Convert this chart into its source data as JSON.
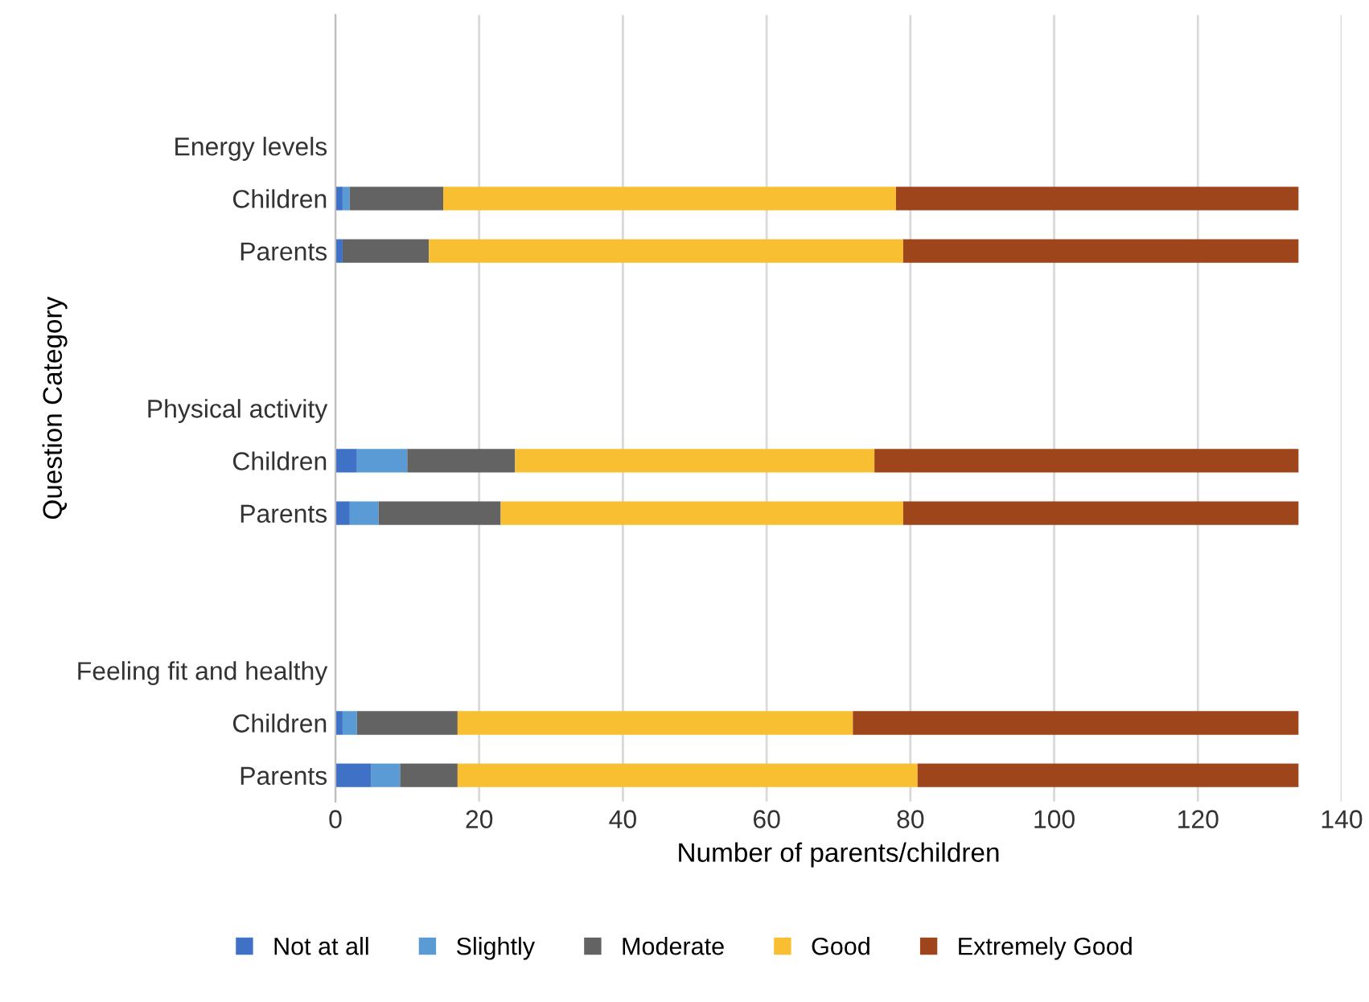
{
  "chart_data": {
    "type": "bar",
    "orientation": "horizontal",
    "stacked": true,
    "xlabel": "Number of parents/children",
    "ylabel": "Question Category",
    "categories": [
      null,
      null,
      "Energy levels",
      "Children",
      "Parents",
      null,
      null,
      "Physical activity",
      "Children",
      "Parents",
      null,
      null,
      "Feeling fit and healthy",
      "Children",
      "Parents"
    ],
    "series": [
      {
        "name": "Not at all",
        "color": "#3f72c6",
        "values": [
          null,
          null,
          null,
          1,
          1,
          null,
          null,
          null,
          3,
          2,
          null,
          null,
          null,
          1,
          5
        ]
      },
      {
        "name": "Slightly",
        "color": "#5b9bd5",
        "values": [
          null,
          null,
          null,
          1,
          0,
          null,
          null,
          null,
          7,
          4,
          null,
          null,
          null,
          2,
          4
        ]
      },
      {
        "name": "Moderate",
        "color": "#636363",
        "values": [
          null,
          null,
          null,
          13,
          12,
          null,
          null,
          null,
          15,
          17,
          null,
          null,
          null,
          14,
          8
        ]
      },
      {
        "name": "Good",
        "color": "#f9bf33",
        "values": [
          null,
          null,
          null,
          63,
          66,
          null,
          null,
          null,
          50,
          56,
          null,
          null,
          null,
          55,
          64
        ]
      },
      {
        "name": "Extremely Good",
        "color": "#9e451b",
        "values": [
          null,
          null,
          null,
          56,
          55,
          null,
          null,
          null,
          59,
          55,
          null,
          null,
          null,
          62,
          53
        ]
      }
    ],
    "xlim": [
      0,
      140
    ],
    "xticks": [
      0,
      20,
      40,
      60,
      80,
      100,
      120,
      140
    ],
    "grid": "x",
    "legend": "bottom"
  }
}
